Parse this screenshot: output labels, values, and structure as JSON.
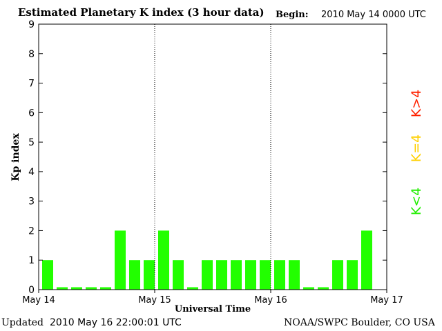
{
  "header": {
    "title": "Estimated Planetary K index (3 hour data)",
    "begin_label": "Begin:",
    "begin_value": "2010 May 14 0000 UTC"
  },
  "footer": {
    "updated_label": "Updated",
    "updated_value": "2010 May 16 22:00:01 UTC",
    "credit": "NOAA/SWPC Boulder, CO USA"
  },
  "legend": [
    {
      "label": "K>4",
      "color": "#ff2200"
    },
    {
      "label": "K=4",
      "color": "#ffd000"
    },
    {
      "label": "K<4",
      "color": "#22ee00"
    }
  ],
  "chart_data": {
    "type": "bar",
    "title": "Estimated Planetary K index (3 hour data)",
    "xlabel": "Universal Time",
    "ylabel": "Kp index",
    "ylim": [
      0,
      9
    ],
    "yticks": [
      "0",
      "1",
      "2",
      "3",
      "4",
      "5",
      "6",
      "7",
      "8",
      "9"
    ],
    "xticks": [
      "May 14",
      "May 15",
      "May 16",
      "May 17"
    ],
    "day_separators": "dotted vertical lines at May 15 and May 16",
    "interval_hours": 3,
    "values": [
      1,
      0,
      0,
      0,
      0,
      2,
      1,
      1,
      2,
      1,
      0,
      1,
      1,
      1,
      1,
      1,
      1,
      1,
      0,
      0,
      1,
      1,
      2
    ],
    "bar_color": "#22ff00"
  }
}
